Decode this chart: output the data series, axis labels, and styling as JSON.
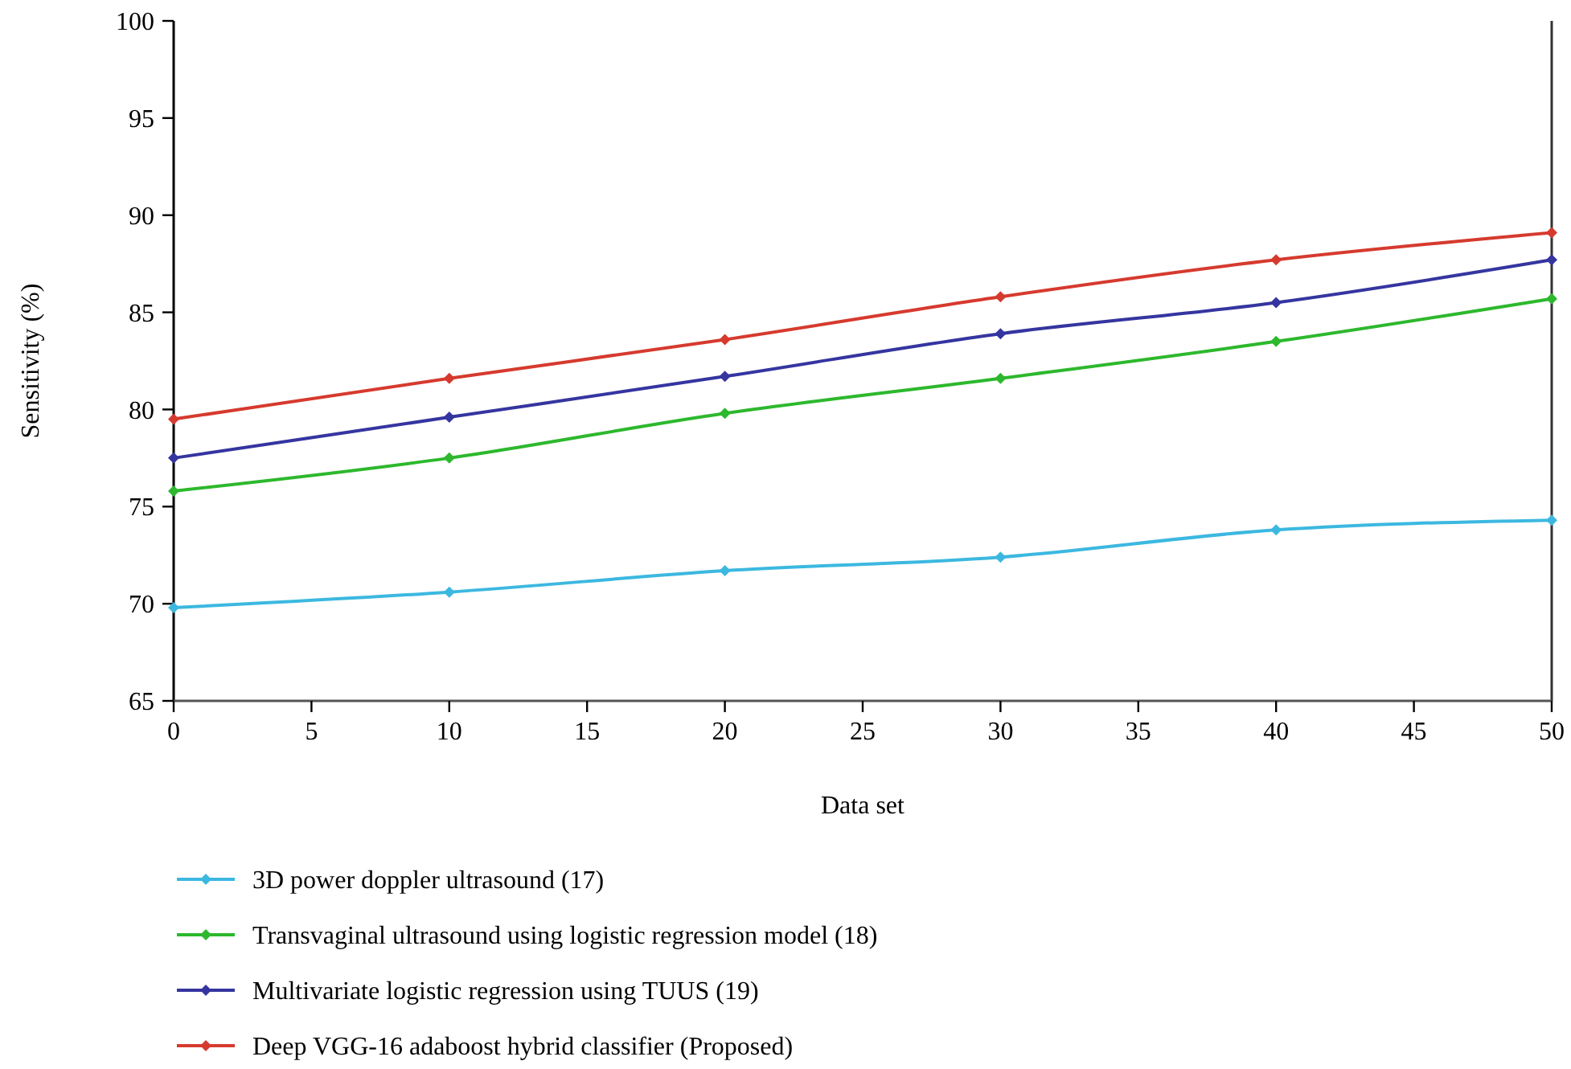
{
  "chart_data": {
    "type": "line",
    "xlabel": "Data set",
    "ylabel": "Sensitivity (%)",
    "x": [
      0,
      10,
      20,
      30,
      40,
      50
    ],
    "series": [
      {
        "name": "3D power doppler ultrasound (17)",
        "color": "#3cb8e0",
        "values": [
          69.8,
          70.6,
          71.7,
          72.4,
          73.8,
          74.3
        ]
      },
      {
        "name": "Transvaginal ultrasound using logistic regression model (18)",
        "color": "#2db82d",
        "values": [
          75.8,
          77.5,
          79.8,
          81.6,
          83.5,
          85.7
        ]
      },
      {
        "name": "Multivariate logistic regression using TUUS (19)",
        "color": "#3535a0",
        "values": [
          77.5,
          79.6,
          81.7,
          83.9,
          85.5,
          87.7
        ]
      },
      {
        "name": "Deep VGG-16 adaboost hybrid classifier (Proposed)",
        "color": "#d63a2e",
        "values": [
          79.5,
          81.6,
          83.6,
          85.8,
          87.7,
          89.1
        ]
      }
    ],
    "xlim": [
      0,
      50
    ],
    "xticks": [
      0,
      5,
      10,
      15,
      20,
      25,
      30,
      35,
      40,
      45,
      50
    ],
    "ylim": [
      65,
      100
    ],
    "yticks": [
      65,
      70,
      75,
      80,
      85,
      90,
      95,
      100
    ],
    "grid": false,
    "legend": "bottom",
    "marker": "diamond",
    "line_style": "solid"
  }
}
